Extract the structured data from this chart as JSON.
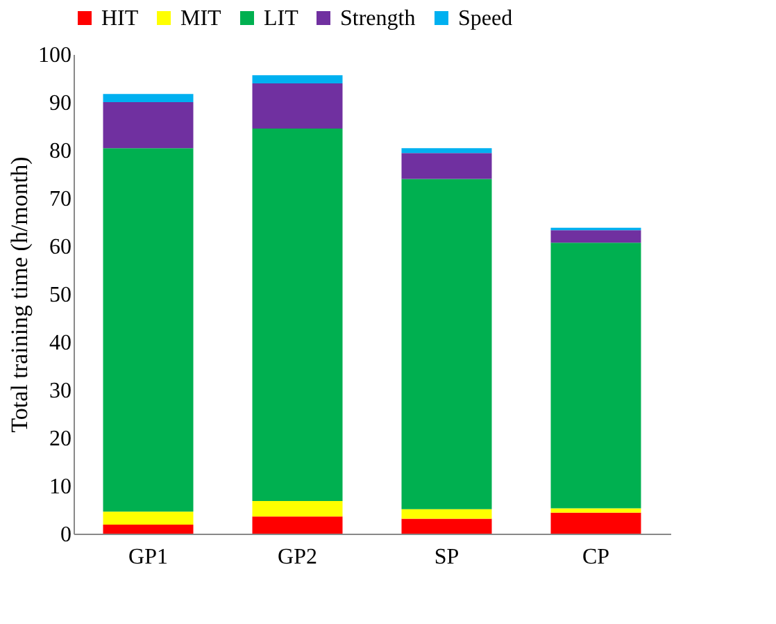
{
  "chart_data": {
    "type": "bar",
    "stacked": true,
    "ylabel": "Total training time (h/month)",
    "categories": [
      "GP1",
      "GP2",
      "SP",
      "CP"
    ],
    "series": [
      {
        "name": "HIT",
        "color": "#ff0000",
        "values": [
          1.9,
          3.6,
          3.1,
          4.4
        ]
      },
      {
        "name": "MIT",
        "color": "#ffff00",
        "values": [
          2.7,
          3.2,
          2.0,
          0.9
        ]
      },
      {
        "name": "LIT",
        "color": "#00b050",
        "values": [
          75.8,
          77.7,
          68.9,
          55.4
        ]
      },
      {
        "name": "Strength",
        "color": "#7030a0",
        "values": [
          9.6,
          9.4,
          5.4,
          2.6
        ]
      },
      {
        "name": "Speed",
        "color": "#00b0f0",
        "values": [
          1.7,
          1.7,
          1.0,
          0.5
        ]
      }
    ],
    "ylim": [
      0,
      100
    ],
    "yticks": [
      0,
      10,
      20,
      30,
      40,
      50,
      60,
      70,
      80,
      90,
      100
    ],
    "grid": false,
    "legend": "top"
  }
}
